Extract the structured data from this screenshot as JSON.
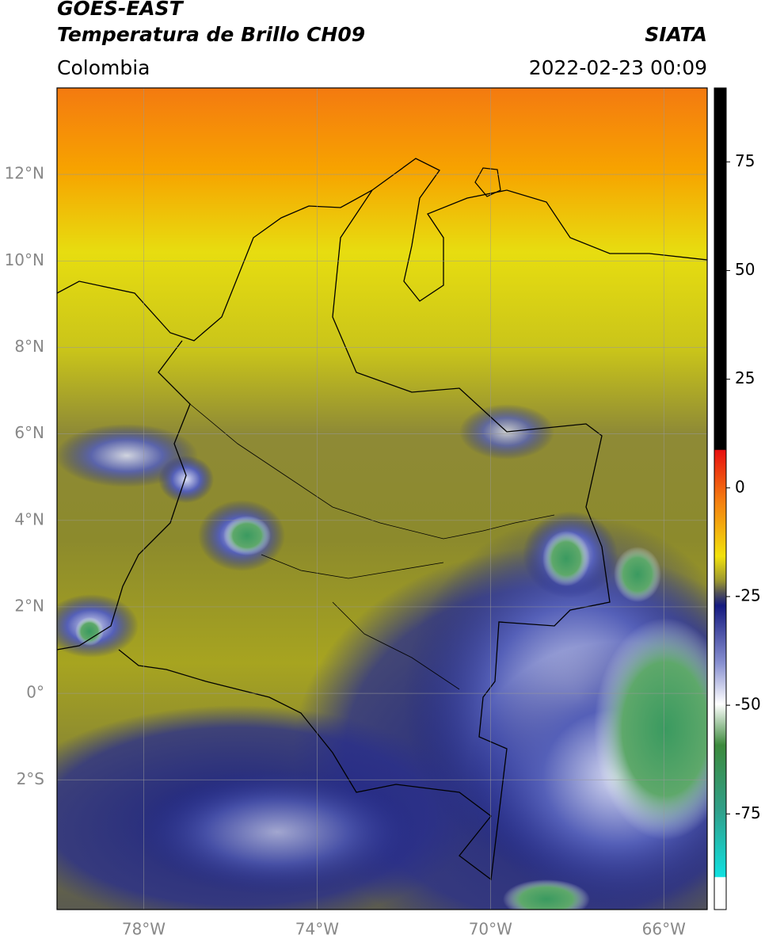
{
  "header": {
    "title": "GOES-EAST",
    "subtitle": "Temperatura de Brillo CH09",
    "source": "SIATA",
    "region": "Colombia",
    "timestamp": "2022-02-23 00:09"
  },
  "map": {
    "lon_range": [
      -80,
      -65
    ],
    "lat_range": [
      -5,
      14
    ],
    "lon_ticks": [
      {
        "value": -78,
        "label": "78°W"
      },
      {
        "value": -74,
        "label": "74°W"
      },
      {
        "value": -70,
        "label": "70°W"
      },
      {
        "value": -66,
        "label": "66°W"
      }
    ],
    "lat_ticks": [
      {
        "value": 12,
        "label": "12°N"
      },
      {
        "value": 10,
        "label": "10°N"
      },
      {
        "value": 8,
        "label": "8°N"
      },
      {
        "value": 6,
        "label": "6°N"
      },
      {
        "value": 4,
        "label": "4°N"
      },
      {
        "value": 2,
        "label": "2°N"
      },
      {
        "value": 0,
        "label": "0°"
      },
      {
        "value": -2,
        "label": "2°S"
      }
    ]
  },
  "colorbar": {
    "range": [
      -97,
      92
    ],
    "ticks": [
      75,
      50,
      25,
      0,
      -25,
      -50,
      -75
    ]
  }
}
